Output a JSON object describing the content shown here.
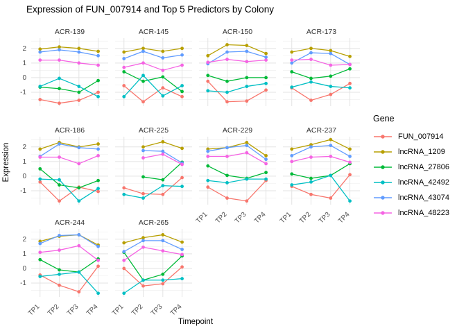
{
  "title": "Expression of FUN_007914 and Top 5 Predictors by Colony",
  "axes": {
    "x_title": "Timepoint",
    "y_title": "Expression",
    "x_tick_labels": [
      "TP1",
      "TP2",
      "TP3",
      "TP4"
    ],
    "y_tick_labels": [
      "2",
      "1",
      "0",
      "-1"
    ]
  },
  "legend": {
    "title": "Gene",
    "entries": [
      "FUN_007914",
      "lncRNA_1209",
      "lncRNA_27806",
      "lncRNA_42492",
      "lncRNA_43074",
      "lncRNA_48223"
    ]
  },
  "chart_data": {
    "type": "line",
    "title": "Expression of FUN_007914 and Top 5 Predictors by Colony",
    "xlabel": "Timepoint",
    "ylabel": "Expression",
    "x": [
      "TP1",
      "TP2",
      "TP3",
      "TP4"
    ],
    "ylim": [
      -1.95,
      2.7
    ],
    "y_breaks": [
      -1,
      0,
      1,
      2
    ],
    "y_minor_breaks": [
      -1.5,
      -0.5,
      0.5,
      1.5,
      2.5
    ],
    "grid": true,
    "legend_position": "right",
    "legend_title": "Gene",
    "series": [
      {
        "name": "FUN_007914",
        "color": "#F8766D"
      },
      {
        "name": "lncRNA_1209",
        "color": "#B79F00"
      },
      {
        "name": "lncRNA_27806",
        "color": "#00BA38"
      },
      {
        "name": "lncRNA_42492",
        "color": "#00BFC4"
      },
      {
        "name": "lncRNA_43074",
        "color": "#619CFF"
      },
      {
        "name": "lncRNA_48223",
        "color": "#F564E3"
      }
    ],
    "facets": [
      {
        "name": "ACR-139",
        "values": {
          "FUN_007914": [
            -1.5,
            -1.75,
            -1.55,
            -1.0
          ],
          "lncRNA_1209": [
            1.95,
            2.1,
            2.0,
            1.8
          ],
          "lncRNA_27806": [
            -0.65,
            -0.75,
            -1.0,
            -0.2
          ],
          "lncRNA_42492": [
            -0.6,
            -0.05,
            -0.6,
            -1.3
          ],
          "lncRNA_43074": [
            1.75,
            1.9,
            1.75,
            1.5
          ],
          "lncRNA_48223": [
            1.2,
            1.2,
            1.0,
            0.85
          ]
        }
      },
      {
        "name": "ACR-145",
        "values": {
          "FUN_007914": [
            -0.55,
            -1.65,
            -0.7,
            -1.3
          ],
          "lncRNA_1209": [
            1.75,
            2.0,
            1.8,
            2.0
          ],
          "lncRNA_27806": [
            0.4,
            -0.25,
            0.05,
            -0.95
          ],
          "lncRNA_42492": [
            -1.3,
            0.15,
            -1.25,
            -0.55
          ],
          "lncRNA_43074": [
            1.3,
            1.8,
            1.35,
            1.55
          ],
          "lncRNA_48223": [
            0.7,
            1.0,
            0.5,
            0.85
          ]
        }
      },
      {
        "name": "ACR-150",
        "values": {
          "FUN_007914": [
            -0.25,
            -1.65,
            -1.6,
            -0.85
          ],
          "lncRNA_1209": [
            1.5,
            2.25,
            2.2,
            1.65
          ],
          "lncRNA_27806": [
            0.15,
            -0.25,
            0.0,
            0.0
          ],
          "lncRNA_42492": [
            -0.9,
            -1.0,
            -0.6,
            -0.4
          ],
          "lncRNA_43074": [
            0.95,
            1.75,
            1.8,
            1.4
          ],
          "lncRNA_48223": [
            1.05,
            1.25,
            1.1,
            1.2
          ]
        }
      },
      {
        "name": "ACR-173",
        "values": {
          "FUN_007914": [
            -0.7,
            -1.55,
            -1.15,
            -0.4
          ],
          "lncRNA_1209": [
            1.75,
            2.0,
            1.85,
            1.45
          ],
          "lncRNA_27806": [
            0.4,
            -0.05,
            0.1,
            0.6
          ],
          "lncRNA_42492": [
            -0.65,
            -0.3,
            -0.6,
            -0.7
          ],
          "lncRNA_43074": [
            1.0,
            1.7,
            1.65,
            0.9
          ],
          "lncRNA_48223": [
            1.2,
            1.25,
            0.85,
            0.9
          ]
        }
      },
      {
        "name": "ACR-186",
        "values": {
          "FUN_007914": [
            -0.4,
            -1.7,
            -0.75,
            -1.05
          ],
          "lncRNA_1209": [
            1.85,
            2.3,
            2.0,
            2.2
          ],
          "lncRNA_27806": [
            0.5,
            -0.6,
            -0.8,
            -0.3
          ],
          "lncRNA_42492": [
            -0.2,
            -0.25,
            -1.7,
            -0.85
          ],
          "lncRNA_43074": [
            1.35,
            2.2,
            1.95,
            1.85
          ],
          "lncRNA_48223": [
            1.3,
            1.3,
            0.85,
            1.4
          ]
        }
      },
      {
        "name": "ACR-225",
        "values": {
          "FUN_007914": [
            -0.8,
            -1.2,
            -1.25,
            -0.1
          ],
          "lncRNA_1209": [
            null,
            2.0,
            2.35,
            1.9
          ],
          "lncRNA_27806": [
            null,
            -0.05,
            -0.25,
            0.95
          ],
          "lncRNA_42492": [
            -1.25,
            -1.5,
            -0.65,
            -0.7
          ],
          "lncRNA_43074": [
            null,
            1.75,
            1.7,
            0.9
          ],
          "lncRNA_48223": [
            null,
            1.25,
            1.5,
            0.8
          ]
        }
      },
      {
        "name": "ACR-229",
        "values": {
          "FUN_007914": [
            -0.75,
            -1.5,
            -1.7,
            -0.3
          ],
          "lncRNA_1209": [
            1.85,
            1.95,
            2.3,
            1.4
          ],
          "lncRNA_27806": [
            0.7,
            0.05,
            -0.15,
            0.25
          ],
          "lncRNA_42492": [
            -0.3,
            -0.45,
            -0.2,
            -0.2
          ],
          "lncRNA_43074": [
            1.7,
            1.95,
            2.1,
            1.15
          ],
          "lncRNA_48223": [
            1.35,
            1.35,
            1.6,
            0.85
          ]
        }
      },
      {
        "name": "ACR-237",
        "values": {
          "FUN_007914": [
            -0.7,
            -1.25,
            -1.5,
            0.1
          ],
          "lncRNA_1209": [
            1.85,
            2.15,
            2.5,
            1.85
          ],
          "lncRNA_27806": [
            0.15,
            -0.15,
            0.05,
            0.85
          ],
          "lncRNA_42492": [
            -0.6,
            -0.4,
            0.05,
            -1.7
          ],
          "lncRNA_43074": [
            1.4,
            2.0,
            2.1,
            1.35
          ],
          "lncRNA_48223": [
            1.0,
            1.3,
            1.35,
            0.95
          ]
        }
      },
      {
        "name": "ACR-244",
        "values": {
          "FUN_007914": [
            -0.45,
            -1.15,
            -1.6,
            0.15
          ],
          "lncRNA_1209": [
            1.85,
            2.2,
            2.3,
            1.6
          ],
          "lncRNA_27806": [
            0.6,
            -0.1,
            -0.25,
            0.65
          ],
          "lncRNA_42492": [
            -0.55,
            -0.4,
            -0.25,
            -1.7
          ],
          "lncRNA_43074": [
            1.7,
            2.25,
            2.3,
            1.5
          ],
          "lncRNA_48223": [
            1.1,
            1.25,
            1.55,
            0.55
          ]
        }
      },
      {
        "name": "ACR-265",
        "values": {
          "FUN_007914": [
            0.0,
            -1.2,
            -1.05,
            0.1
          ],
          "lncRNA_1209": [
            1.75,
            2.1,
            2.3,
            1.8
          ],
          "lncRNA_27806": [
            1.1,
            -0.8,
            -0.4,
            0.85
          ],
          "lncRNA_42492": [
            -1.7,
            -0.8,
            -0.8,
            -0.7
          ],
          "lncRNA_43074": [
            1.15,
            1.9,
            1.9,
            1.3
          ],
          "lncRNA_48223": [
            0.55,
            1.45,
            1.2,
            0.95
          ]
        }
      }
    ]
  }
}
